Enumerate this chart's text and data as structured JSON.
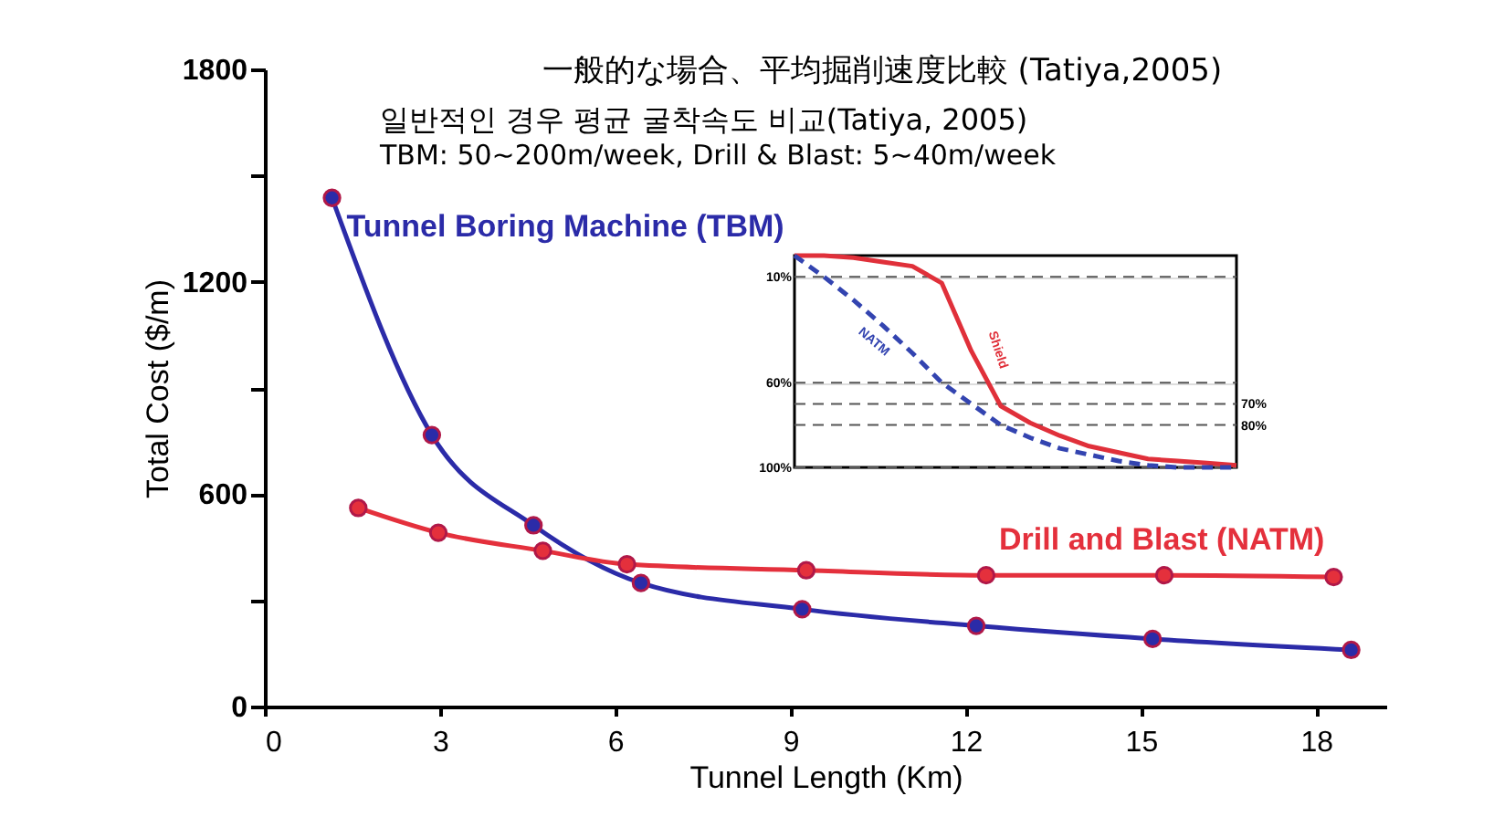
{
  "chart_data": [
    {
      "type": "line",
      "title": "一般的な場合、平均掘削速度比較 (Tatiya,2005)",
      "subtitle": "일반적인 경우 평균 굴착속도 비교(Tatiya, 2005)",
      "annotations": [
        "TBM: 50~200m/week, Drill & Blast: 5~40m/week"
      ],
      "xlabel": "Tunnel Length (Km)",
      "ylabel": "Total Cost ($/m)",
      "xlim": [
        0,
        19.2
      ],
      "ylim": [
        0,
        1800
      ],
      "xticks": [
        0,
        3,
        6,
        9,
        12,
        15,
        18
      ],
      "yticks": [
        0,
        {
          "value": 300,
          "label": null
        },
        600,
        {
          "value": 900,
          "label": null
        },
        1200,
        {
          "value": 1500,
          "label": null
        },
        1800
      ],
      "grid": false,
      "marker": "circle",
      "series": [
        {
          "name": "Tunnel Boring Machine (TBM)",
          "color": "#2b2ba8",
          "x": [
            1.15,
            2.86,
            4.6,
            6.44,
            9.2,
            12.18,
            15.2,
            18.6
          ],
          "values": [
            1437,
            767,
            512,
            349,
            275,
            228,
            191,
            160
          ]
        },
        {
          "name": "Drill and Blast (NATM)",
          "color": "#e4303c",
          "x": [
            1.6,
            2.97,
            4.76,
            6.2,
            9.27,
            12.35,
            15.4,
            18.3
          ],
          "values": [
            561,
            491,
            440,
            402,
            385,
            371,
            371,
            366
          ]
        }
      ]
    },
    {
      "type": "line",
      "categories": [
        null,
        null,
        null,
        null,
        null,
        null,
        null,
        null,
        null,
        null,
        null,
        null,
        null,
        null,
        null,
        null
      ],
      "ylim": [
        100,
        0
      ],
      "yticks": [
        {
          "value": 10,
          "label": "10%"
        },
        {
          "value": 60,
          "label": "60%"
        },
        {
          "value": 100,
          "label": "100%"
        }
      ],
      "y2lim": [
        100,
        0
      ],
      "y2ticks": [
        {
          "value": 70,
          "label": "70%"
        },
        {
          "value": 80,
          "label": "80%"
        }
      ],
      "tick_labels": "y",
      "grid": "y",
      "marker": "none",
      "series": [
        {
          "name": "Shield",
          "color": "#e0303a",
          "line_style": "solid",
          "values": [
            0,
            0,
            1,
            3,
            5,
            13,
            45,
            71,
            79,
            85,
            90,
            93,
            96,
            97,
            98,
            99
          ]
        },
        {
          "name": "NATM",
          "color": "#3344b0",
          "line_style": "dashed",
          "values": [
            0,
            10,
            21,
            33,
            46,
            60,
            70,
            80,
            86,
            91,
            94,
            97,
            99,
            100,
            100,
            100
          ]
        }
      ]
    }
  ]
}
